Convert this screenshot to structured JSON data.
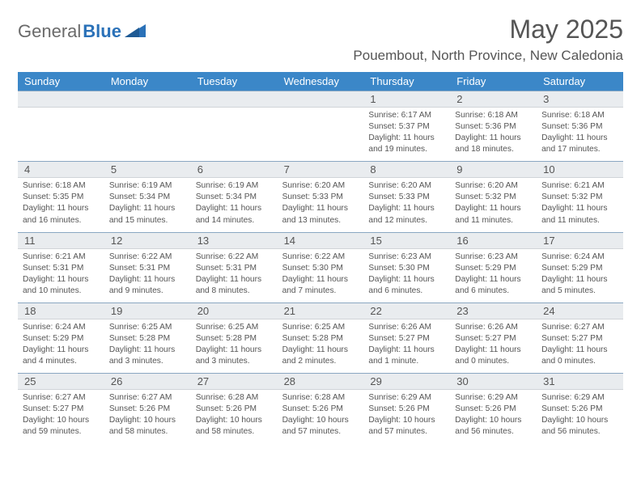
{
  "logo": {
    "text1": "General",
    "text2": "Blue"
  },
  "title": "May 2025",
  "location": "Pouembout, North Province, New Caledonia",
  "colors": {
    "header_band": "#3b87c8",
    "daynum_band": "#e9ecef",
    "text": "#555555",
    "logo_gray": "#6a6a6a",
    "logo_blue": "#2a71b8"
  },
  "weekdays": [
    "Sunday",
    "Monday",
    "Tuesday",
    "Wednesday",
    "Thursday",
    "Friday",
    "Saturday"
  ],
  "weeks": [
    [
      {
        "n": "",
        "sr": "",
        "ss": "",
        "dl1": "",
        "dl2": ""
      },
      {
        "n": "",
        "sr": "",
        "ss": "",
        "dl1": "",
        "dl2": ""
      },
      {
        "n": "",
        "sr": "",
        "ss": "",
        "dl1": "",
        "dl2": ""
      },
      {
        "n": "",
        "sr": "",
        "ss": "",
        "dl1": "",
        "dl2": ""
      },
      {
        "n": "1",
        "sr": "Sunrise: 6:17 AM",
        "ss": "Sunset: 5:37 PM",
        "dl1": "Daylight: 11 hours",
        "dl2": "and 19 minutes."
      },
      {
        "n": "2",
        "sr": "Sunrise: 6:18 AM",
        "ss": "Sunset: 5:36 PM",
        "dl1": "Daylight: 11 hours",
        "dl2": "and 18 minutes."
      },
      {
        "n": "3",
        "sr": "Sunrise: 6:18 AM",
        "ss": "Sunset: 5:36 PM",
        "dl1": "Daylight: 11 hours",
        "dl2": "and 17 minutes."
      }
    ],
    [
      {
        "n": "4",
        "sr": "Sunrise: 6:18 AM",
        "ss": "Sunset: 5:35 PM",
        "dl1": "Daylight: 11 hours",
        "dl2": "and 16 minutes."
      },
      {
        "n": "5",
        "sr": "Sunrise: 6:19 AM",
        "ss": "Sunset: 5:34 PM",
        "dl1": "Daylight: 11 hours",
        "dl2": "and 15 minutes."
      },
      {
        "n": "6",
        "sr": "Sunrise: 6:19 AM",
        "ss": "Sunset: 5:34 PM",
        "dl1": "Daylight: 11 hours",
        "dl2": "and 14 minutes."
      },
      {
        "n": "7",
        "sr": "Sunrise: 6:20 AM",
        "ss": "Sunset: 5:33 PM",
        "dl1": "Daylight: 11 hours",
        "dl2": "and 13 minutes."
      },
      {
        "n": "8",
        "sr": "Sunrise: 6:20 AM",
        "ss": "Sunset: 5:33 PM",
        "dl1": "Daylight: 11 hours",
        "dl2": "and 12 minutes."
      },
      {
        "n": "9",
        "sr": "Sunrise: 6:20 AM",
        "ss": "Sunset: 5:32 PM",
        "dl1": "Daylight: 11 hours",
        "dl2": "and 11 minutes."
      },
      {
        "n": "10",
        "sr": "Sunrise: 6:21 AM",
        "ss": "Sunset: 5:32 PM",
        "dl1": "Daylight: 11 hours",
        "dl2": "and 11 minutes."
      }
    ],
    [
      {
        "n": "11",
        "sr": "Sunrise: 6:21 AM",
        "ss": "Sunset: 5:31 PM",
        "dl1": "Daylight: 11 hours",
        "dl2": "and 10 minutes."
      },
      {
        "n": "12",
        "sr": "Sunrise: 6:22 AM",
        "ss": "Sunset: 5:31 PM",
        "dl1": "Daylight: 11 hours",
        "dl2": "and 9 minutes."
      },
      {
        "n": "13",
        "sr": "Sunrise: 6:22 AM",
        "ss": "Sunset: 5:31 PM",
        "dl1": "Daylight: 11 hours",
        "dl2": "and 8 minutes."
      },
      {
        "n": "14",
        "sr": "Sunrise: 6:22 AM",
        "ss": "Sunset: 5:30 PM",
        "dl1": "Daylight: 11 hours",
        "dl2": "and 7 minutes."
      },
      {
        "n": "15",
        "sr": "Sunrise: 6:23 AM",
        "ss": "Sunset: 5:30 PM",
        "dl1": "Daylight: 11 hours",
        "dl2": "and 6 minutes."
      },
      {
        "n": "16",
        "sr": "Sunrise: 6:23 AM",
        "ss": "Sunset: 5:29 PM",
        "dl1": "Daylight: 11 hours",
        "dl2": "and 6 minutes."
      },
      {
        "n": "17",
        "sr": "Sunrise: 6:24 AM",
        "ss": "Sunset: 5:29 PM",
        "dl1": "Daylight: 11 hours",
        "dl2": "and 5 minutes."
      }
    ],
    [
      {
        "n": "18",
        "sr": "Sunrise: 6:24 AM",
        "ss": "Sunset: 5:29 PM",
        "dl1": "Daylight: 11 hours",
        "dl2": "and 4 minutes."
      },
      {
        "n": "19",
        "sr": "Sunrise: 6:25 AM",
        "ss": "Sunset: 5:28 PM",
        "dl1": "Daylight: 11 hours",
        "dl2": "and 3 minutes."
      },
      {
        "n": "20",
        "sr": "Sunrise: 6:25 AM",
        "ss": "Sunset: 5:28 PM",
        "dl1": "Daylight: 11 hours",
        "dl2": "and 3 minutes."
      },
      {
        "n": "21",
        "sr": "Sunrise: 6:25 AM",
        "ss": "Sunset: 5:28 PM",
        "dl1": "Daylight: 11 hours",
        "dl2": "and 2 minutes."
      },
      {
        "n": "22",
        "sr": "Sunrise: 6:26 AM",
        "ss": "Sunset: 5:27 PM",
        "dl1": "Daylight: 11 hours",
        "dl2": "and 1 minute."
      },
      {
        "n": "23",
        "sr": "Sunrise: 6:26 AM",
        "ss": "Sunset: 5:27 PM",
        "dl1": "Daylight: 11 hours",
        "dl2": "and 0 minutes."
      },
      {
        "n": "24",
        "sr": "Sunrise: 6:27 AM",
        "ss": "Sunset: 5:27 PM",
        "dl1": "Daylight: 11 hours",
        "dl2": "and 0 minutes."
      }
    ],
    [
      {
        "n": "25",
        "sr": "Sunrise: 6:27 AM",
        "ss": "Sunset: 5:27 PM",
        "dl1": "Daylight: 10 hours",
        "dl2": "and 59 minutes."
      },
      {
        "n": "26",
        "sr": "Sunrise: 6:27 AM",
        "ss": "Sunset: 5:26 PM",
        "dl1": "Daylight: 10 hours",
        "dl2": "and 58 minutes."
      },
      {
        "n": "27",
        "sr": "Sunrise: 6:28 AM",
        "ss": "Sunset: 5:26 PM",
        "dl1": "Daylight: 10 hours",
        "dl2": "and 58 minutes."
      },
      {
        "n": "28",
        "sr": "Sunrise: 6:28 AM",
        "ss": "Sunset: 5:26 PM",
        "dl1": "Daylight: 10 hours",
        "dl2": "and 57 minutes."
      },
      {
        "n": "29",
        "sr": "Sunrise: 6:29 AM",
        "ss": "Sunset: 5:26 PM",
        "dl1": "Daylight: 10 hours",
        "dl2": "and 57 minutes."
      },
      {
        "n": "30",
        "sr": "Sunrise: 6:29 AM",
        "ss": "Sunset: 5:26 PM",
        "dl1": "Daylight: 10 hours",
        "dl2": "and 56 minutes."
      },
      {
        "n": "31",
        "sr": "Sunrise: 6:29 AM",
        "ss": "Sunset: 5:26 PM",
        "dl1": "Daylight: 10 hours",
        "dl2": "and 56 minutes."
      }
    ]
  ]
}
